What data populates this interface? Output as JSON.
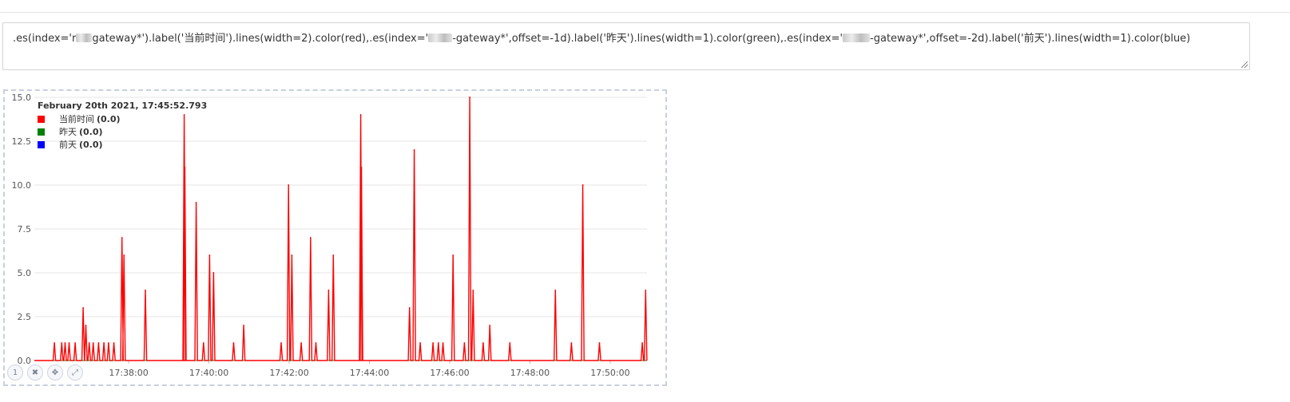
{
  "expression": {
    "part1_prefix": ".es(index='r",
    "part1_suffix": "gateway*').label('当前时间').lines(width=2).color(red),.es(index='",
    "part2_suffix": "-gateway*',offset=-1d).label('昨天').lines(width=1).color(green),.es(index='",
    "part3_suffix": "-gateway*',offset=-2d).label('前天').lines(width=1).color(blue)"
  },
  "legend": {
    "timestamp": "February 20th 2021, 17:45:52.793",
    "items": [
      {
        "label": "当前时间",
        "value": "(0.0)",
        "color": "#ff0000"
      },
      {
        "label": "昨天",
        "value": "(0.0)",
        "color": "#008000"
      },
      {
        "label": "前天",
        "value": "(0.0)",
        "color": "#0000ff"
      }
    ]
  },
  "panel_tools": [
    {
      "name": "panel-number-badge",
      "label": "1"
    },
    {
      "name": "close-icon",
      "label": "✖"
    },
    {
      "name": "move-icon",
      "label": "✥"
    },
    {
      "name": "expand-icon",
      "label": "⤢"
    }
  ],
  "chart_data": {
    "type": "line",
    "xlabel": "",
    "ylabel": "",
    "ylim": [
      0,
      15
    ],
    "y_ticks": [
      "0.0",
      "2.5",
      "5.0",
      "7.5",
      "10.0",
      "12.5",
      "15.0"
    ],
    "x_ticks": [
      "17:38:00",
      "17:40:00",
      "17:42:00",
      "17:44:00",
      "17:46:00",
      "17:48:00",
      "17:50:00"
    ],
    "grid": true,
    "legend_position": "top-left",
    "series": [
      {
        "name": "当前时间",
        "color": "#ff0000",
        "width": 2,
        "points": [
          [
            "17:36:09",
            1
          ],
          [
            "17:36:20",
            1
          ],
          [
            "17:36:25",
            1
          ],
          [
            "17:36:31",
            1
          ],
          [
            "17:36:40",
            1
          ],
          [
            "17:36:52",
            3
          ],
          [
            "17:36:56",
            2
          ],
          [
            "17:37:01",
            1
          ],
          [
            "17:37:07",
            1
          ],
          [
            "17:37:15",
            1
          ],
          [
            "17:37:23",
            1
          ],
          [
            "17:37:30",
            1
          ],
          [
            "17:37:38",
            1
          ],
          [
            "17:37:50",
            7
          ],
          [
            "17:37:53",
            6
          ],
          [
            "17:38:25",
            4
          ],
          [
            "17:39:23",
            14
          ],
          [
            "17:39:24",
            11
          ],
          [
            "17:39:41",
            9
          ],
          [
            "17:39:52",
            1
          ],
          [
            "17:40:01",
            6
          ],
          [
            "17:40:07",
            5
          ],
          [
            "17:40:37",
            1
          ],
          [
            "17:40:52",
            2
          ],
          [
            "17:41:48",
            1
          ],
          [
            "17:41:59",
            10
          ],
          [
            "17:42:04",
            6
          ],
          [
            "17:42:18",
            1
          ],
          [
            "17:42:32",
            7
          ],
          [
            "17:42:40",
            1
          ],
          [
            "17:42:59",
            4
          ],
          [
            "17:43:06",
            6
          ],
          [
            "17:43:47",
            14
          ],
          [
            "17:43:48",
            11
          ],
          [
            "17:45:00",
            3
          ],
          [
            "17:45:07",
            12
          ],
          [
            "17:45:16",
            1
          ],
          [
            "17:45:35",
            1
          ],
          [
            "17:45:43",
            1
          ],
          [
            "17:45:50",
            1
          ],
          [
            "17:46:05",
            6
          ],
          [
            "17:46:22",
            1
          ],
          [
            "17:46:30",
            15
          ],
          [
            "17:46:35",
            4
          ],
          [
            "17:46:50",
            1
          ],
          [
            "17:47:00",
            2
          ],
          [
            "17:47:30",
            1
          ],
          [
            "17:48:38",
            4
          ],
          [
            "17:49:02",
            1
          ],
          [
            "17:49:19",
            10
          ],
          [
            "17:49:44",
            1
          ],
          [
            "17:50:48",
            1
          ],
          [
            "17:50:53",
            4
          ]
        ]
      },
      {
        "name": "昨天",
        "color": "#008000",
        "width": 1,
        "points": [
          [
            "17:35:39",
            0
          ],
          [
            "17:50:55",
            0
          ]
        ]
      },
      {
        "name": "前天",
        "color": "#0000ff",
        "width": 1,
        "points": [
          [
            "17:35:39",
            0
          ],
          [
            "17:50:55",
            0
          ]
        ]
      }
    ]
  }
}
